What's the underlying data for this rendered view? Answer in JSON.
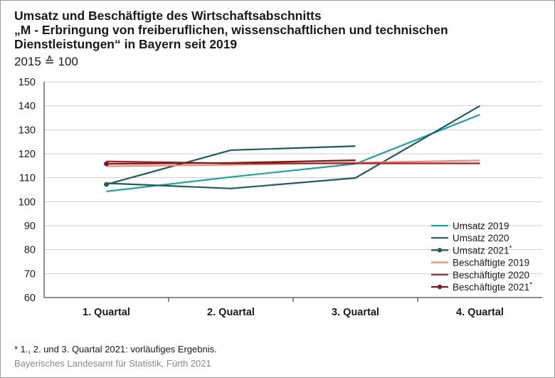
{
  "title_lines": [
    "Umsatz und Beschäftigte des Wirtschaftsabschnitts",
    "„M - Erbringung von freiberuflichen, wissenschaftlichen und technischen",
    "Dienstleistungen“ in Bayern seit 2019"
  ],
  "subtitle": "2015 ≙ 100",
  "footnote": "*  1., 2. und 3. Quartal 2021: vorläufiges Ergebnis.",
  "source": "Bayerisches Landesamt für Statistik, Fürth 2021",
  "chart_data": {
    "type": "line",
    "categories": [
      "1. Quartal",
      "2. Quartal",
      "3. Quartal",
      "4. Quartal"
    ],
    "ylim": [
      60,
      150
    ],
    "yticks": [
      "60",
      "70",
      "80",
      "90",
      "100",
      "110",
      "120",
      "130",
      "140",
      "150"
    ],
    "grid": "horizontal",
    "legend_position": "bottom-right",
    "series": [
      {
        "name": "Umsatz 2019",
        "values": [
          104.3,
          110.3,
          115.8,
          136.3
        ],
        "color": "#1aa3a3",
        "marker": false
      },
      {
        "name": "Umsatz 2020",
        "values": [
          107.7,
          105.5,
          109.9,
          140.0
        ],
        "color": "#1c5e5e",
        "marker": false
      },
      {
        "name": "Umsatz 2021*",
        "values": [
          107.2,
          121.5,
          123.2,
          null
        ],
        "color": "#1c5e5e",
        "marker": true
      },
      {
        "name": "Beschäftigte 2019",
        "values": [
          114.8,
          115.4,
          116.3,
          117.2
        ],
        "color": "#ee8a7a",
        "marker": false
      },
      {
        "name": "Beschäftigte 2020",
        "values": [
          116.8,
          116.0,
          116.0,
          116.0
        ],
        "color": "#b01e1e",
        "marker": false
      },
      {
        "name": "Beschäftigte 2021*",
        "values": [
          115.8,
          116.2,
          117.3,
          null
        ],
        "color": "#7a1a1a",
        "marker": true
      }
    ]
  }
}
